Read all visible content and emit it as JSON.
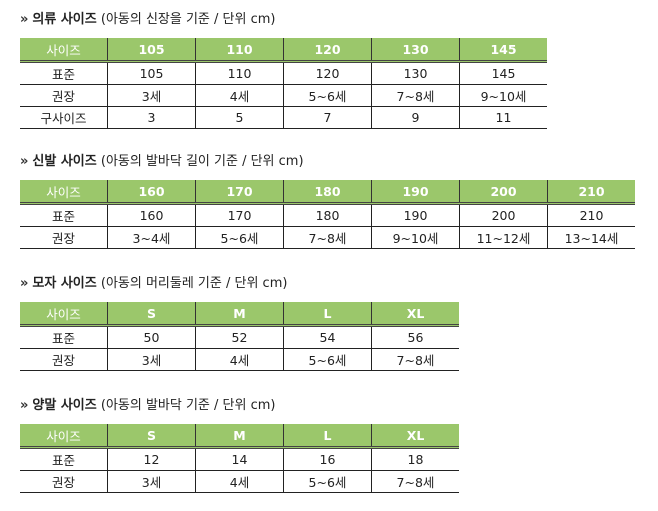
{
  "sections": [
    {
      "bold": "의류 사이즈",
      "note": "(아동의 신장을 기준 / 단위 cm)",
      "header": [
        "사이즈",
        "105",
        "110",
        "120",
        "130",
        "145"
      ],
      "rows": [
        [
          "표준",
          "105",
          "110",
          "120",
          "130",
          "145"
        ],
        [
          "권장",
          "3세",
          "4세",
          "5~6세",
          "7~8세",
          "9~10세"
        ],
        [
          "구사이즈",
          "3",
          "5",
          "7",
          "9",
          "11"
        ]
      ]
    },
    {
      "bold": "신발 사이즈",
      "note": "(아동의 발바닥 길이 기준 / 단위 cm)",
      "header": [
        "사이즈",
        "160",
        "170",
        "180",
        "190",
        "200",
        "210"
      ],
      "rows": [
        [
          "표준",
          "160",
          "170",
          "180",
          "190",
          "200",
          "210"
        ],
        [
          "권장",
          "3~4세",
          "5~6세",
          "7~8세",
          "9~10세",
          "11~12세",
          "13~14세"
        ]
      ]
    },
    {
      "bold": "모자 사이즈",
      "note": "(아동의 머리둘레 기준 / 단위 cm)",
      "header": [
        "사이즈",
        "S",
        "M",
        "L",
        "XL"
      ],
      "rows": [
        [
          "표준",
          "50",
          "52",
          "54",
          "56"
        ],
        [
          "권장",
          "3세",
          "4세",
          "5~6세",
          "7~8세"
        ]
      ]
    },
    {
      "bold": "양말 사이즈",
      "note": "(아동의 발바닥 기준 / 단위 cm)",
      "header": [
        "사이즈",
        "S",
        "M",
        "L",
        "XL"
      ],
      "rows": [
        [
          "표준",
          "12",
          "14",
          "16",
          "18"
        ],
        [
          "권장",
          "3세",
          "4세",
          "5~6세",
          "7~8세"
        ]
      ]
    }
  ],
  "arrow_icon": "double-chevron-right",
  "header_color": "#9bc76b"
}
